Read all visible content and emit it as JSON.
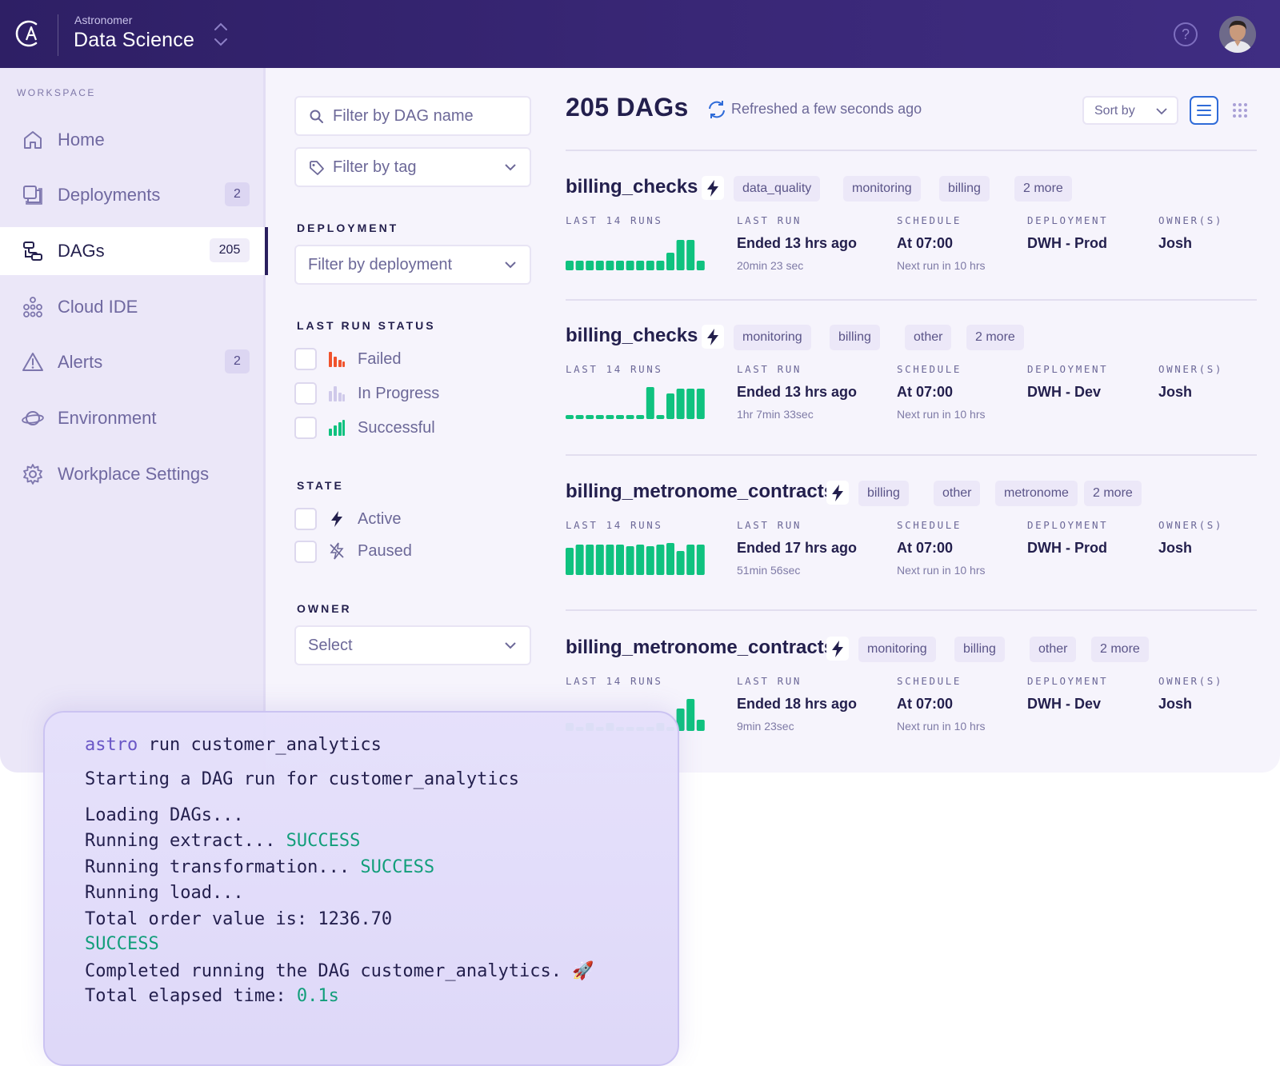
{
  "header": {
    "org": "Astronomer",
    "workspace": "Data Science",
    "help_label": "?"
  },
  "sidebar": {
    "section_label": "WORKSPACE",
    "items": [
      {
        "label": "Home",
        "badge": "",
        "icon": "home-icon"
      },
      {
        "label": "Deployments",
        "badge": "2",
        "icon": "deployments-icon"
      },
      {
        "label": "DAGs",
        "badge": "205",
        "icon": "dags-icon",
        "active": true
      },
      {
        "label": "Cloud IDE",
        "badge": "",
        "icon": "cloud-ide-icon"
      },
      {
        "label": "Alerts",
        "badge": "2",
        "icon": "alert-icon"
      },
      {
        "label": "Environment",
        "badge": "",
        "icon": "planet-icon"
      },
      {
        "label": "Workplace Settings",
        "badge": "",
        "icon": "gear-icon"
      }
    ]
  },
  "filters": {
    "dag_name_placeholder": "Filter by DAG name",
    "tag_placeholder": "Filter by tag",
    "deployment_title": "DEPLOYMENT",
    "deployment_placeholder": "Filter by deployment",
    "status_title": "LAST RUN STATUS",
    "status_options": [
      "Failed",
      "In Progress",
      "Successful"
    ],
    "state_title": "STATE",
    "state_options": [
      "Active",
      "Paused"
    ],
    "owner_title": "OWNER",
    "owner_placeholder": "Select"
  },
  "list": {
    "count_title": "205 DAGs",
    "refreshed": "Refreshed a few seconds ago",
    "sort_label": "Sort by",
    "labels": {
      "runs": "LAST 14 RUNS",
      "last_run": "LAST RUN",
      "schedule": "SCHEDULE",
      "deployment": "DEPLOYMENT",
      "owners": "OWNER(S)"
    },
    "dags": [
      {
        "name": "billing_checks",
        "tags": [
          "data_quality",
          "monitoring",
          "billing",
          "2 more"
        ],
        "last_run": "Ended 13 hrs ago",
        "duration": "20min 23 sec",
        "schedule": "At 07:00",
        "next_run": "Next run in 10 hrs",
        "deployment": "DWH - Prod",
        "owner": "Josh",
        "runs": [
          0.3,
          0.3,
          0.3,
          0.3,
          0.3,
          0.3,
          0.3,
          0.3,
          0.3,
          0.3,
          0.55,
          0.95,
          0.95,
          0.3
        ]
      },
      {
        "name": "billing_checks",
        "tags": [
          "monitoring",
          "billing",
          "other",
          "2 more"
        ],
        "last_run": "Ended 13 hrs ago",
        "duration": "1hr 7min 33sec",
        "schedule": "At 07:00",
        "next_run": "Next run in 10 hrs",
        "deployment": "DWH - Dev",
        "owner": "Josh",
        "runs": [
          0.12,
          0.12,
          0.12,
          0.12,
          0.12,
          0.12,
          0.12,
          0.12,
          1.0,
          0.12,
          0.8,
          0.95,
          0.95,
          0.95
        ]
      },
      {
        "name": "billing_metronome_contracts",
        "tags": [
          "billing",
          "other",
          "metronome",
          "2 more"
        ],
        "last_run": "Ended 17 hrs ago",
        "duration": "51min 56sec",
        "schedule": "At 07:00",
        "next_run": "Next run in 10 hrs",
        "deployment": "DWH - Prod",
        "owner": "Josh",
        "runs": [
          0.85,
          0.95,
          0.95,
          0.95,
          0.95,
          0.95,
          0.9,
          0.95,
          0.9,
          0.95,
          1.0,
          0.75,
          0.95,
          0.95
        ]
      },
      {
        "name": "billing_metronome_contracts",
        "tags": [
          "monitoring",
          "billing",
          "other",
          "2 more"
        ],
        "last_run": "Ended 18 hrs ago",
        "duration": "9min 23sec",
        "schedule": "At 07:00",
        "next_run": "Next run in 10 hrs",
        "deployment": "DWH - Dev",
        "owner": "Josh",
        "runs": [
          0.25,
          0.1,
          0.25,
          0.1,
          0.25,
          0.1,
          0.1,
          0.1,
          0.1,
          0.25,
          0.1,
          0.7,
          1.0,
          0.35
        ]
      }
    ]
  },
  "terminal": {
    "command_keyword": "astro",
    "command_rest": " run customer_analytics",
    "line_start": "Starting a DAG run for customer_analytics",
    "line_loading": "Loading DAGs...",
    "line_extract": "Running extract... ",
    "line_transform": "Running transformation... ",
    "line_load": "Running load...",
    "line_total": "Total order value is: 1236.70",
    "line_success": "SUCCESS",
    "line_completed": "Completed running the DAG customer_analytics. 🚀",
    "line_elapsed": "Total elapsed time: ",
    "elapsed_value": "0.1s",
    "success_word": "SUCCESS"
  },
  "colors": {
    "header_bg": "#2e1f65",
    "success_green": "#0fc27f",
    "failed_red": "#f0532d",
    "accent_blue": "#2f6bd8",
    "terminal_cmd": "#6a57c6"
  }
}
